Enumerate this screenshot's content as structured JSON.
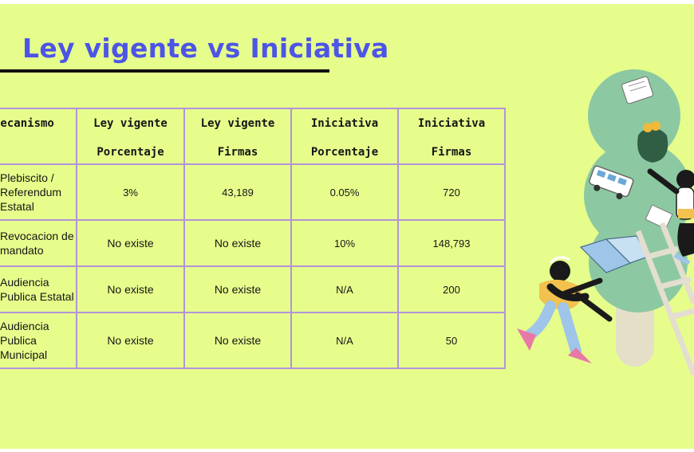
{
  "slide": {
    "title": "Ley vigente vs Iniciativa"
  },
  "table": {
    "headers": [
      {
        "line1": "Mecanismo",
        "line2": ""
      },
      {
        "line1": "Ley vigente",
        "line2": "Porcentaje"
      },
      {
        "line1": "Ley vigente",
        "line2": "Firmas"
      },
      {
        "line1": "Iniciativa",
        "line2": "Porcentaje"
      },
      {
        "line1": "Iniciativa",
        "line2": "Firmas"
      }
    ],
    "rows": [
      {
        "mecanismo": [
          "Plebiscito /",
          "Referendum",
          "Estatal"
        ],
        "ley_porcentaje": "3%",
        "ley_firmas": "43,189",
        "ini_porcentaje": "0.05%",
        "ini_firmas": "720"
      },
      {
        "mecanismo": [
          "Revocacion de",
          "mandato"
        ],
        "ley_porcentaje": "No existe",
        "ley_firmas": "No existe",
        "ini_porcentaje": "10%",
        "ini_firmas": "148,793"
      },
      {
        "mecanismo": [
          "Audiencia",
          "Publica Estatal"
        ],
        "ley_porcentaje": "No existe",
        "ley_firmas": "No existe",
        "ini_porcentaje": "N/A",
        "ini_firmas": "200"
      },
      {
        "mecanismo": [
          "Audiencia",
          "Publica",
          "Municipal"
        ],
        "ley_porcentaje": "No existe",
        "ley_firmas": "No existe",
        "ini_porcentaje": "N/A",
        "ini_firmas": "50"
      }
    ]
  },
  "colors": {
    "background": "#e6fd8c",
    "title": "#4d55e6",
    "table_border": "#b294d9"
  }
}
